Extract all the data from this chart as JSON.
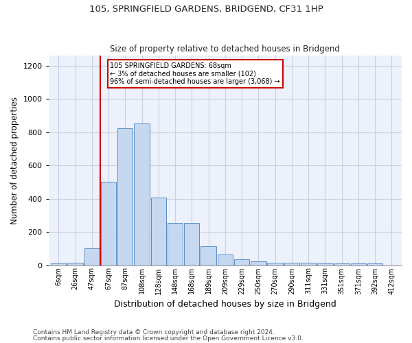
{
  "title1": "105, SPRINGFIELD GARDENS, BRIDGEND, CF31 1HP",
  "title2": "Size of property relative to detached houses in Bridgend",
  "xlabel": "Distribution of detached houses by size in Bridgend",
  "ylabel": "Number of detached properties",
  "bar_labels": [
    "6sqm",
    "26sqm",
    "47sqm",
    "67sqm",
    "87sqm",
    "108sqm",
    "128sqm",
    "148sqm",
    "168sqm",
    "189sqm",
    "209sqm",
    "229sqm",
    "250sqm",
    "270sqm",
    "290sqm",
    "311sqm",
    "331sqm",
    "351sqm",
    "371sqm",
    "392sqm",
    "412sqm"
  ],
  "bar_values": [
    10,
    15,
    100,
    500,
    825,
    850,
    405,
    255,
    255,
    115,
    65,
    35,
    22,
    15,
    15,
    15,
    10,
    10,
    10,
    10,
    0
  ],
  "bar_color": "#c5d8f0",
  "bar_edge_color": "#5b8ec4",
  "annotation_title": "105 SPRINGFIELD GARDENS: 68sqm",
  "annotation_line2": "← 3% of detached houses are smaller (102)",
  "annotation_line3": "96% of semi-detached houses are larger (3,068) →",
  "annotation_box_color": "#ffffff",
  "annotation_box_edge": "#cc0000",
  "redline_color": "#cc0000",
  "ylim": [
    0,
    1260
  ],
  "yticks": [
    0,
    200,
    400,
    600,
    800,
    1000,
    1200
  ],
  "footnote1": "Contains HM Land Registry data © Crown copyright and database right 2024.",
  "footnote2": "Contains public sector information licensed under the Open Government Licence v3.0.",
  "grid_color": "#c8cfe0",
  "bg_color": "#edf1fb"
}
